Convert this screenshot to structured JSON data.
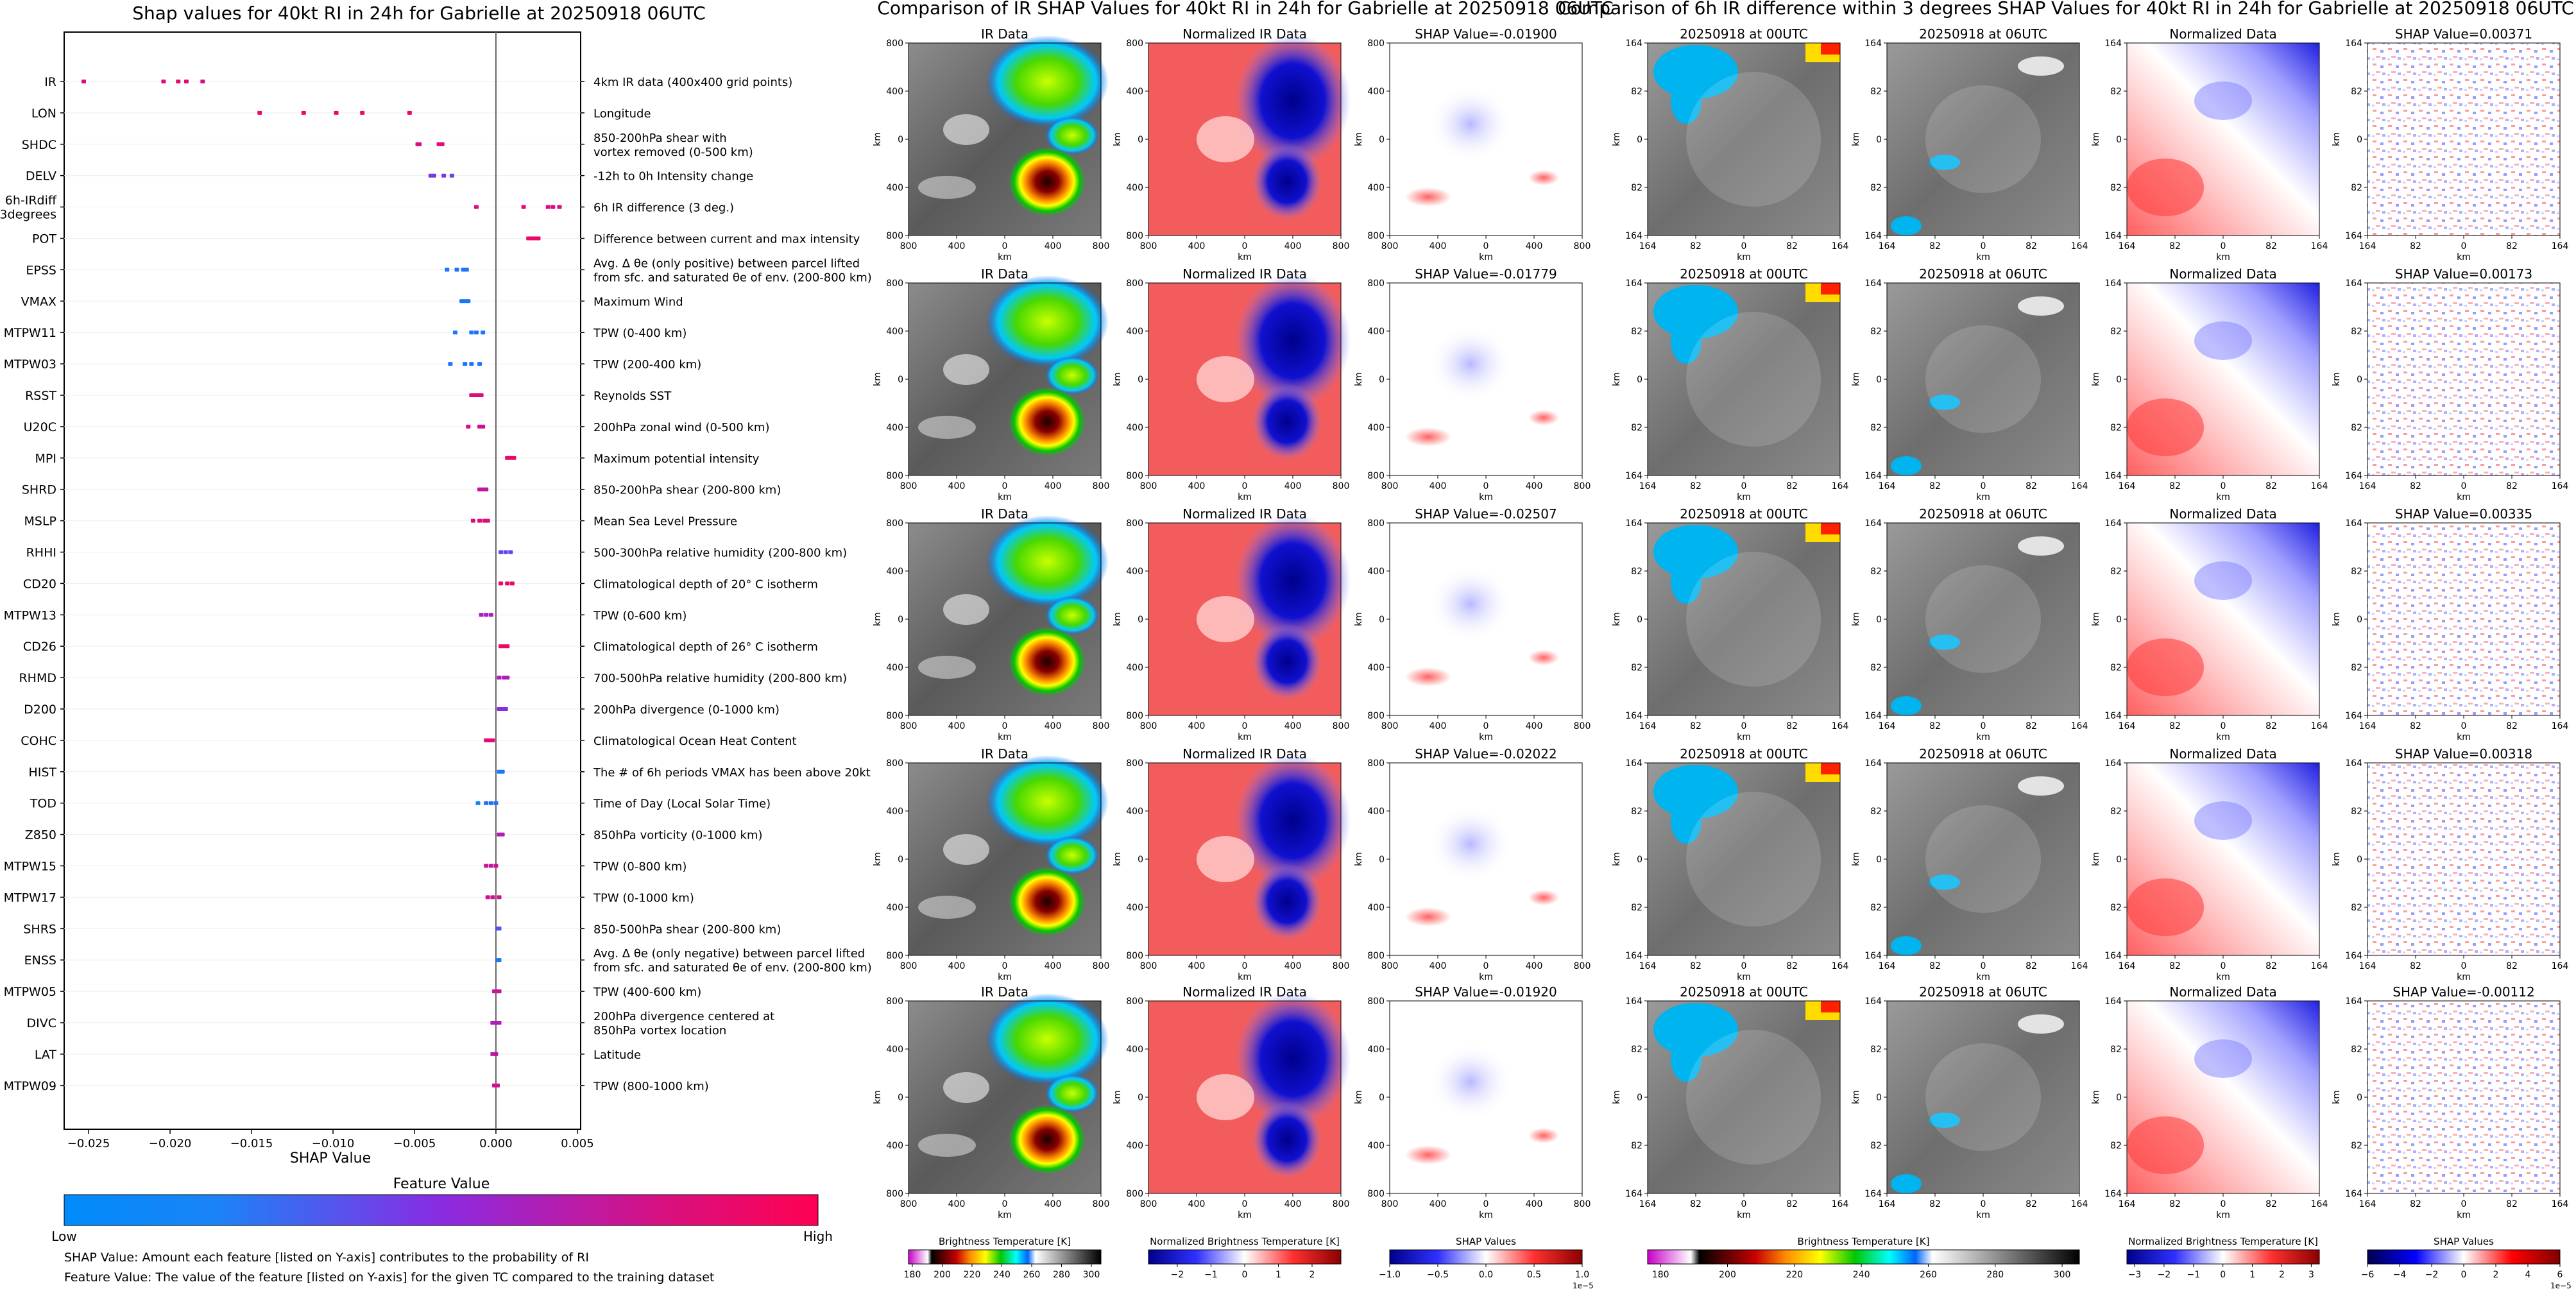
{
  "shap_summary": {
    "title": "Shap values for 40kt RI in 24h for Gabrielle at 20250918 06UTC",
    "xlabel": "SHAP Value",
    "colorbar_title": "Feature Value",
    "colorbar_low": "Low",
    "colorbar_high": "High",
    "footnote_1": "SHAP Value: Amount each feature [listed on Y-axis] contributes to the probability of RI",
    "footnote_2": "Feature Value: The value of the feature [listed on Y-axis] for the given TC compared to the training dataset"
  },
  "ir_panels": {
    "title": "Comparison of IR SHAP Values for 40kt RI in 24h for Gabrielle at 20250918 06UTC",
    "col_titles": [
      "IR Data",
      "Normalized IR Data"
    ],
    "shap_titles": [
      "SHAP Value=-0.01900",
      "SHAP Value=-0.01779",
      "SHAP Value=-0.02507",
      "SHAP Value=-0.02022",
      "SHAP Value=-0.01920"
    ],
    "axis_label": "km",
    "ticks": [
      "800",
      "400",
      "0",
      "400",
      "800"
    ],
    "x_ticks": [
      "800",
      "400",
      "0",
      "400",
      "800"
    ],
    "colorbars": [
      {
        "label": "Brightness Temperature [K]",
        "ticks": [
          "180",
          "200",
          "220",
          "240",
          "260",
          "280",
          "300"
        ]
      },
      {
        "label": "Normalized Brightness Temperature [K]",
        "ticks": [
          "−2",
          "−1",
          "0",
          "1",
          "2"
        ]
      },
      {
        "label": "SHAP Values",
        "ticks": [
          "−1.0",
          "−0.5",
          "0.0",
          "0.5",
          "1.0"
        ],
        "offset": "1e−5"
      }
    ]
  },
  "diff_panels": {
    "title": "Comparison of 6h IR difference within 3 degrees SHAP Values for 40kt RI in 24h for Gabrielle at 20250918 06UTC",
    "col_titles": [
      "20250918 at 00UTC",
      "20250918 at 06UTC",
      "Normalized Data"
    ],
    "shap_titles": [
      "SHAP Value=0.00371",
      "SHAP Value=0.00173",
      "SHAP Value=0.00335",
      "SHAP Value=0.00318",
      "SHAP Value=-0.00112"
    ],
    "axis_label": "km",
    "ticks": [
      "164",
      "82",
      "0",
      "82",
      "164"
    ],
    "colorbars": [
      {
        "label": "Brightness Temperature [K]",
        "ticks": [
          "180",
          "200",
          "220",
          "240",
          "260",
          "280",
          "300"
        ]
      },
      {
        "label": "Normalized Brightness Temperature [K]",
        "ticks": [
          "−3",
          "−2",
          "−1",
          "0",
          "1",
          "2",
          "3"
        ]
      },
      {
        "label": "SHAP Values",
        "ticks": [
          "−6",
          "−4",
          "−2",
          "0",
          "2",
          "4",
          "6"
        ],
        "offset": "1e−5"
      }
    ]
  },
  "chart_data": [
    {
      "type": "scatter",
      "title": "Shap values for 40kt RI in 24h for Gabrielle at 20250918 06UTC",
      "xlabel": "SHAP Value",
      "xlim": [
        -0.0265,
        0.0052
      ],
      "x_ticks": [
        {
          "v": -0.025,
          "label": "−0.025"
        },
        {
          "v": -0.02,
          "label": "−0.020"
        },
        {
          "v": -0.015,
          "label": "−0.015"
        },
        {
          "v": -0.01,
          "label": "−0.010"
        },
        {
          "v": -0.005,
          "label": "−0.005"
        },
        {
          "v": 0.0,
          "label": "0.000"
        },
        {
          "v": 0.005,
          "label": "0.005"
        }
      ],
      "legend": "colorbar (Feature Value: Low → High)",
      "features": [
        {
          "name": "IR",
          "desc": [
            "4km IR data (400x400 grid points)"
          ],
          "points": [
            [
              -0.0253,
              0.82
            ],
            [
              -0.0204,
              0.85
            ],
            [
              -0.0195,
              0.88
            ],
            [
              -0.019,
              0.85
            ],
            [
              -0.018,
              0.8
            ]
          ]
        },
        {
          "name": "LON",
          "desc": [
            "Longitude"
          ],
          "points": [
            [
              -0.0145,
              0.92
            ],
            [
              -0.0118,
              0.92
            ],
            [
              -0.0098,
              0.92
            ],
            [
              -0.0082,
              0.92
            ],
            [
              -0.0053,
              0.92
            ]
          ]
        },
        {
          "name": "SHDC",
          "desc": [
            "850-200hPa shear with",
            "vortex removed (0-500 km)"
          ],
          "points": [
            [
              -0.0048,
              0.85
            ],
            [
              -0.0047,
              0.85
            ],
            [
              -0.0035,
              0.87
            ],
            [
              -0.0033,
              0.87
            ]
          ]
        },
        {
          "name": "DELV",
          "desc": [
            "-12h to 0h Intensity change"
          ],
          "points": [
            [
              -0.004,
              0.45
            ],
            [
              -0.0038,
              0.45
            ],
            [
              -0.0032,
              0.4
            ],
            [
              -0.0027,
              0.38
            ]
          ]
        },
        {
          "name": "6h-IRdiff\n3degrees",
          "desc": [
            "6h IR difference (3 deg.)"
          ],
          "points": [
            [
              -0.0012,
              0.85
            ],
            [
              0.0017,
              0.88
            ],
            [
              0.0032,
              0.85
            ],
            [
              0.0035,
              0.85
            ],
            [
              0.0039,
              0.85
            ]
          ]
        },
        {
          "name": "POT",
          "desc": [
            "Difference between current and max intensity"
          ],
          "points": [
            [
              0.002,
              0.92
            ],
            [
              0.0022,
              0.92
            ],
            [
              0.0024,
              0.92
            ],
            [
              0.0026,
              0.92
            ]
          ]
        },
        {
          "name": "EPSS",
          "desc": [
            "Avg. Δ θe (only positive) between parcel lifted",
            "from sfc. and saturated θe of env. (200-800 km)"
          ],
          "points": [
            [
              -0.003,
              0.1
            ],
            [
              -0.0024,
              0.12
            ],
            [
              -0.002,
              0.12
            ],
            [
              -0.0018,
              0.12
            ]
          ]
        },
        {
          "name": "VMAX",
          "desc": [
            "Maximum Wind"
          ],
          "points": [
            [
              -0.0021,
              0.08
            ],
            [
              -0.002,
              0.1
            ],
            [
              -0.0018,
              0.1
            ],
            [
              -0.0017,
              0.1
            ]
          ]
        },
        {
          "name": "MTPW11",
          "desc": [
            "TPW (0-400 km)"
          ],
          "points": [
            [
              -0.0025,
              0.1
            ],
            [
              -0.0015,
              0.1
            ],
            [
              -0.0012,
              0.1
            ],
            [
              -0.0008,
              0.1
            ]
          ]
        },
        {
          "name": "MTPW03",
          "desc": [
            "TPW (200-400 km)"
          ],
          "points": [
            [
              -0.0028,
              0.1
            ],
            [
              -0.0019,
              0.1
            ],
            [
              -0.0015,
              0.15
            ],
            [
              -0.001,
              0.1
            ]
          ]
        },
        {
          "name": "RSST",
          "desc": [
            "Reynolds SST"
          ],
          "points": [
            [
              -0.0015,
              0.85
            ],
            [
              -0.0013,
              0.85
            ],
            [
              -0.0011,
              0.85
            ],
            [
              -0.0009,
              0.85
            ]
          ]
        },
        {
          "name": "U20C",
          "desc": [
            "200hPa zonal wind (0-500 km)"
          ],
          "points": [
            [
              -0.0017,
              0.88
            ],
            [
              -0.001,
              0.8
            ],
            [
              -0.0008,
              0.8
            ]
          ]
        },
        {
          "name": "MPI",
          "desc": [
            "Maximum potential intensity"
          ],
          "points": [
            [
              0.0007,
              0.92
            ],
            [
              0.0009,
              0.92
            ],
            [
              0.0011,
              0.92
            ]
          ]
        },
        {
          "name": "SHRD",
          "desc": [
            "850-200hPa shear (200-800 km)"
          ],
          "points": [
            [
              -0.001,
              0.72
            ],
            [
              -0.0008,
              0.72
            ],
            [
              -0.0006,
              0.72
            ]
          ]
        },
        {
          "name": "MSLP",
          "desc": [
            "Mean Sea Level Pressure"
          ],
          "points": [
            [
              -0.0014,
              0.85
            ],
            [
              -0.001,
              0.85
            ],
            [
              -0.0007,
              0.85
            ],
            [
              -0.0005,
              0.85
            ]
          ]
        },
        {
          "name": "RHHI",
          "desc": [
            "500-300hPa relative humidity (200-800 km)"
          ],
          "points": [
            [
              0.0003,
              0.35
            ],
            [
              0.0006,
              0.35
            ],
            [
              0.0009,
              0.35
            ]
          ]
        },
        {
          "name": "CD20",
          "desc": [
            "Climatological depth of 20° C isotherm"
          ],
          "points": [
            [
              0.0003,
              0.92
            ],
            [
              0.0007,
              0.92
            ],
            [
              0.001,
              0.92
            ]
          ]
        },
        {
          "name": "MTPW13",
          "desc": [
            "TPW (0-600 km)"
          ],
          "points": [
            [
              -0.0009,
              0.62
            ],
            [
              -0.0006,
              0.62
            ],
            [
              -0.0003,
              0.62
            ]
          ]
        },
        {
          "name": "CD26",
          "desc": [
            "Climatological depth of 26° C isotherm"
          ],
          "points": [
            [
              0.0003,
              0.92
            ],
            [
              0.0005,
              0.92
            ],
            [
              0.0007,
              0.92
            ]
          ]
        },
        {
          "name": "RHMD",
          "desc": [
            "700-500hPa relative humidity (200-800 km)"
          ],
          "points": [
            [
              0.0002,
              0.65
            ],
            [
              0.0005,
              0.65
            ],
            [
              0.0007,
              0.65
            ]
          ]
        },
        {
          "name": "D200",
          "desc": [
            "200hPa divergence (0-1000 km)"
          ],
          "points": [
            [
              0.0002,
              0.5
            ],
            [
              0.0004,
              0.5
            ],
            [
              0.0006,
              0.5
            ]
          ]
        },
        {
          "name": "COHC",
          "desc": [
            "Climatological Ocean Heat Content"
          ],
          "points": [
            [
              -0.0006,
              0.88
            ],
            [
              -0.0004,
              0.88
            ],
            [
              -0.0002,
              0.88
            ]
          ]
        },
        {
          "name": "HIST",
          "desc": [
            "The # of 6h periods VMAX has been above 20kt"
          ],
          "points": [
            [
              0.0002,
              0.1
            ],
            [
              0.0004,
              0.1
            ]
          ]
        },
        {
          "name": "TOD",
          "desc": [
            "Time of Day (Local Solar Time)"
          ],
          "points": [
            [
              -0.0011,
              0.05
            ],
            [
              -0.0006,
              0.15
            ],
            [
              -0.0003,
              0.15
            ],
            [
              0.0,
              0.1
            ]
          ]
        },
        {
          "name": "Z850",
          "desc": [
            "850hPa vorticity (0-1000 km)"
          ],
          "points": [
            [
              0.0002,
              0.65
            ],
            [
              0.0004,
              0.65
            ]
          ]
        },
        {
          "name": "MTPW15",
          "desc": [
            "TPW (0-800 km)"
          ],
          "points": [
            [
              -0.0006,
              0.75
            ],
            [
              -0.0003,
              0.75
            ],
            [
              0.0,
              0.75
            ]
          ]
        },
        {
          "name": "MTPW17",
          "desc": [
            "TPW (0-1000 km)"
          ],
          "points": [
            [
              -0.0005,
              0.78
            ],
            [
              -0.0002,
              0.78
            ],
            [
              0.0002,
              0.78
            ]
          ]
        },
        {
          "name": "SHRS",
          "desc": [
            "850-500hPa shear (200-800 km)"
          ],
          "points": [
            [
              0.0001,
              0.3
            ],
            [
              0.0002,
              0.3
            ]
          ]
        },
        {
          "name": "ENSS",
          "desc": [
            "Avg. Δ θe (only negative) between parcel lifted",
            "from sfc. and saturated θe of env. (200-800 km)"
          ],
          "points": [
            [
              0.0001,
              0.1
            ],
            [
              0.0002,
              0.1
            ]
          ]
        },
        {
          "name": "MTPW05",
          "desc": [
            "TPW (400-600 km)"
          ],
          "points": [
            [
              -0.0001,
              0.75
            ],
            [
              0.0001,
              0.75
            ],
            [
              0.0002,
              0.75
            ]
          ]
        },
        {
          "name": "DIVC",
          "desc": [
            "200hPa divergence centered at",
            "850hPa vortex location"
          ],
          "points": [
            [
              -0.0002,
              0.65
            ],
            [
              0.0,
              0.65
            ],
            [
              0.0002,
              0.65
            ]
          ]
        },
        {
          "name": "LAT",
          "desc": [
            "Latitude"
          ],
          "points": [
            [
              -0.0002,
              0.7
            ],
            [
              0.0,
              0.7
            ]
          ]
        },
        {
          "name": "MTPW09",
          "desc": [
            "TPW (800-1000 km)"
          ],
          "points": [
            [
              -0.0001,
              0.8
            ],
            [
              0.0001,
              0.8
            ]
          ]
        }
      ]
    },
    {
      "type": "heatmap",
      "title": "Comparison of IR SHAP Values for 40kt RI in 24h for Gabrielle at 20250918 06UTC",
      "rows": 5,
      "panels_per_row": [
        "IR Data",
        "Normalized IR Data",
        "SHAP Value"
      ],
      "shap_values": [
        -0.019,
        -0.01779,
        -0.02507,
        -0.02022,
        -0.0192
      ],
      "xlabel": "km",
      "ylabel": "km",
      "xlim": [
        -800,
        800
      ],
      "ylim": [
        -800,
        800
      ]
    },
    {
      "type": "heatmap",
      "title": "Comparison of 6h IR difference within 3 degrees SHAP Values for 40kt RI in 24h for Gabrielle at 20250918 06UTC",
      "rows": 5,
      "panels_per_row": [
        "20250918 at 00UTC",
        "20250918 at 06UTC",
        "Normalized Data",
        "SHAP Value"
      ],
      "shap_values": [
        0.00371,
        0.00173,
        0.00335,
        0.00318,
        -0.00112
      ],
      "xlabel": "km",
      "ylabel": "km",
      "xlim": [
        -164,
        164
      ],
      "ylim": [
        -164,
        164
      ]
    }
  ],
  "colors": {
    "low": "#008afb",
    "mid": "#8a2be2",
    "high": "#ff0052",
    "ir_cold": "#2a0000",
    "norm_pos": "#f25c5c",
    "norm_neg": "#1010c8"
  }
}
